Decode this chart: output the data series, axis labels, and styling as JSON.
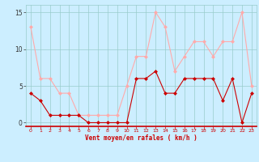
{
  "x": [
    0,
    1,
    2,
    3,
    4,
    5,
    6,
    7,
    8,
    9,
    10,
    11,
    12,
    13,
    14,
    15,
    16,
    17,
    18,
    19,
    20,
    21,
    22,
    23
  ],
  "vent_moyen": [
    4,
    3,
    1,
    1,
    1,
    1,
    0,
    0,
    0,
    0,
    0,
    6,
    6,
    7,
    4,
    4,
    6,
    6,
    6,
    6,
    3,
    6,
    0,
    4
  ],
  "rafales": [
    13,
    6,
    6,
    4,
    4,
    1,
    1,
    1,
    1,
    1,
    5,
    9,
    9,
    15,
    13,
    7,
    9,
    11,
    11,
    9,
    11,
    11,
    15,
    5
  ],
  "color_moyen": "#cc0000",
  "color_rafales": "#ffaaaa",
  "bg_color": "#cceeff",
  "grid_color": "#99cccc",
  "xlabel": "Vent moyen/en rafales ( km/h )",
  "xlabel_color": "#cc0000",
  "ylim": [
    -0.5,
    16
  ],
  "yticks": [
    0,
    5,
    10,
    15
  ],
  "xticks": [
    0,
    1,
    2,
    3,
    4,
    5,
    6,
    7,
    8,
    9,
    10,
    11,
    12,
    13,
    14,
    15,
    16,
    17,
    18,
    19,
    20,
    21,
    22,
    23
  ]
}
